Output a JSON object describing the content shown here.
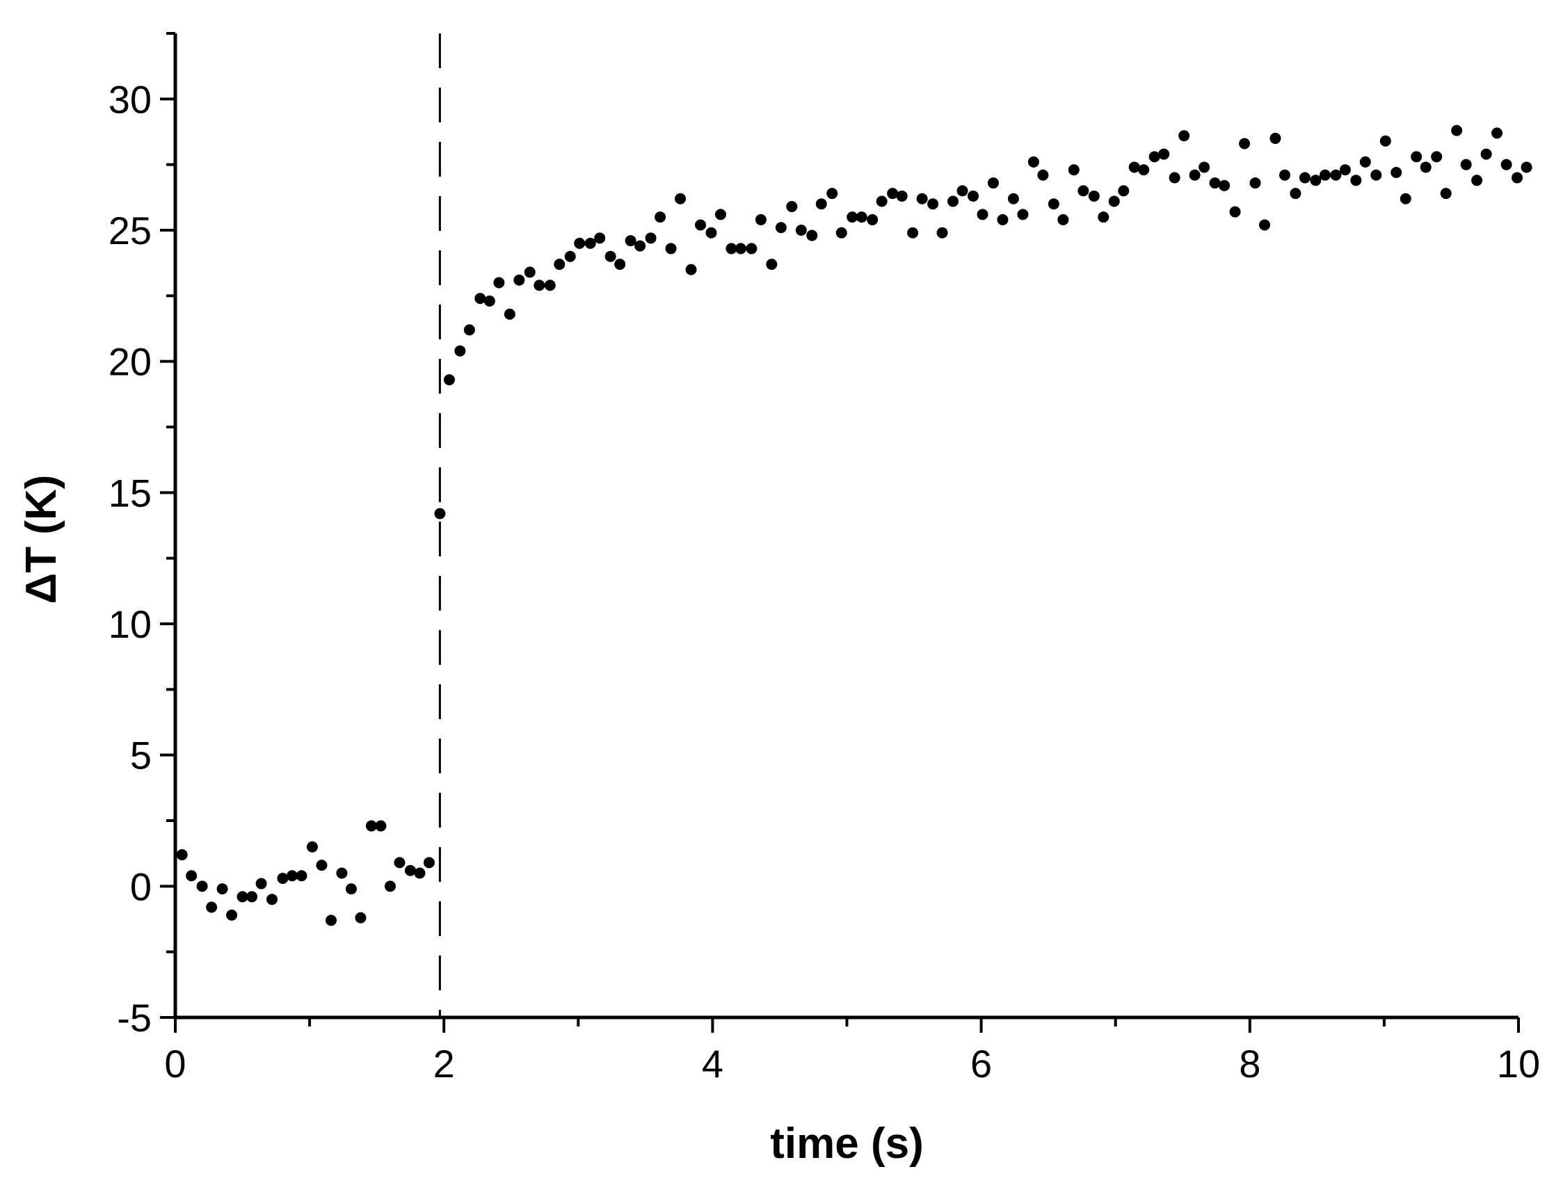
{
  "chart_data": {
    "type": "scatter",
    "xlabel": "time (s)",
    "ylabel": "ΔT (K)",
    "xlim": [
      0,
      10
    ],
    "ylim": [
      -5,
      32.5
    ],
    "xticks": [
      0,
      2,
      4,
      6,
      8,
      10
    ],
    "yticks": [
      -5,
      0,
      5,
      10,
      15,
      20,
      25,
      30
    ],
    "x_minor_step": 1,
    "y_minor_step": 2.5,
    "grid": false,
    "legend": "none",
    "vertical_marker": {
      "x": 1.97,
      "style": "dashed"
    },
    "series": [
      {
        "marker_color": "#000000",
        "points": [
          [
            0.05,
            1.2
          ],
          [
            0.12,
            0.4
          ],
          [
            0.2,
            0.0
          ],
          [
            0.27,
            -0.8
          ],
          [
            0.35,
            -0.1
          ],
          [
            0.42,
            -1.1
          ],
          [
            0.5,
            -0.4
          ],
          [
            0.57,
            -0.4
          ],
          [
            0.64,
            0.1
          ],
          [
            0.72,
            -0.5
          ],
          [
            0.8,
            0.3
          ],
          [
            0.87,
            0.4
          ],
          [
            0.94,
            0.4
          ],
          [
            1.02,
            1.5
          ],
          [
            1.09,
            0.8
          ],
          [
            1.16,
            -1.3
          ],
          [
            1.24,
            0.5
          ],
          [
            1.31,
            -0.1
          ],
          [
            1.38,
            -1.2
          ],
          [
            1.46,
            2.3
          ],
          [
            1.53,
            2.3
          ],
          [
            1.6,
            0.0
          ],
          [
            1.67,
            0.9
          ],
          [
            1.75,
            0.6
          ],
          [
            1.82,
            0.5
          ],
          [
            1.89,
            0.9
          ],
          [
            1.97,
            14.2
          ],
          [
            2.04,
            19.3
          ],
          [
            2.12,
            20.4
          ],
          [
            2.19,
            21.2
          ],
          [
            2.27,
            22.4
          ],
          [
            2.34,
            22.3
          ],
          [
            2.41,
            23.0
          ],
          [
            2.49,
            21.8
          ],
          [
            2.56,
            23.1
          ],
          [
            2.64,
            23.4
          ],
          [
            2.71,
            22.9
          ],
          [
            2.79,
            22.9
          ],
          [
            2.86,
            23.7
          ],
          [
            2.94,
            24.0
          ],
          [
            3.01,
            24.5
          ],
          [
            3.09,
            24.5
          ],
          [
            3.16,
            24.7
          ],
          [
            3.24,
            24.0
          ],
          [
            3.31,
            23.7
          ],
          [
            3.39,
            24.6
          ],
          [
            3.46,
            24.4
          ],
          [
            3.54,
            24.7
          ],
          [
            3.61,
            25.5
          ],
          [
            3.69,
            24.3
          ],
          [
            3.76,
            26.2
          ],
          [
            3.84,
            23.5
          ],
          [
            3.91,
            25.2
          ],
          [
            3.99,
            24.9
          ],
          [
            4.06,
            25.6
          ],
          [
            4.14,
            24.3
          ],
          [
            4.21,
            24.3
          ],
          [
            4.29,
            24.3
          ],
          [
            4.36,
            25.4
          ],
          [
            4.44,
            23.7
          ],
          [
            4.51,
            25.1
          ],
          [
            4.59,
            25.9
          ],
          [
            4.66,
            25.0
          ],
          [
            4.74,
            24.8
          ],
          [
            4.81,
            26.0
          ],
          [
            4.89,
            26.4
          ],
          [
            4.96,
            24.9
          ],
          [
            5.04,
            25.5
          ],
          [
            5.11,
            25.5
          ],
          [
            5.19,
            25.4
          ],
          [
            5.26,
            26.1
          ],
          [
            5.34,
            26.4
          ],
          [
            5.41,
            26.3
          ],
          [
            5.49,
            24.9
          ],
          [
            5.56,
            26.2
          ],
          [
            5.64,
            26.0
          ],
          [
            5.71,
            24.9
          ],
          [
            5.79,
            26.1
          ],
          [
            5.86,
            26.5
          ],
          [
            5.94,
            26.3
          ],
          [
            6.01,
            25.6
          ],
          [
            6.09,
            26.8
          ],
          [
            6.16,
            25.4
          ],
          [
            6.24,
            26.2
          ],
          [
            6.31,
            25.6
          ],
          [
            6.39,
            27.6
          ],
          [
            6.46,
            27.1
          ],
          [
            6.54,
            26.0
          ],
          [
            6.61,
            25.4
          ],
          [
            6.69,
            27.3
          ],
          [
            6.76,
            26.5
          ],
          [
            6.84,
            26.3
          ],
          [
            6.91,
            25.5
          ],
          [
            6.99,
            26.1
          ],
          [
            7.06,
            26.5
          ],
          [
            7.14,
            27.4
          ],
          [
            7.21,
            27.3
          ],
          [
            7.29,
            27.8
          ],
          [
            7.36,
            27.9
          ],
          [
            7.44,
            27.0
          ],
          [
            7.51,
            28.6
          ],
          [
            7.59,
            27.1
          ],
          [
            7.66,
            27.4
          ],
          [
            7.74,
            26.8
          ],
          [
            7.81,
            26.7
          ],
          [
            7.89,
            25.7
          ],
          [
            7.96,
            28.3
          ],
          [
            8.04,
            26.8
          ],
          [
            8.11,
            25.2
          ],
          [
            8.19,
            28.5
          ],
          [
            8.26,
            27.1
          ],
          [
            8.34,
            26.4
          ],
          [
            8.41,
            27.0
          ],
          [
            8.49,
            26.9
          ],
          [
            8.56,
            27.1
          ],
          [
            8.64,
            27.1
          ],
          [
            8.71,
            27.3
          ],
          [
            8.79,
            26.9
          ],
          [
            8.86,
            27.6
          ],
          [
            8.94,
            27.1
          ],
          [
            9.01,
            28.4
          ],
          [
            9.09,
            27.2
          ],
          [
            9.16,
            26.2
          ],
          [
            9.24,
            27.8
          ],
          [
            9.31,
            27.4
          ],
          [
            9.39,
            27.8
          ],
          [
            9.46,
            26.4
          ],
          [
            9.54,
            28.8
          ],
          [
            9.61,
            27.5
          ],
          [
            9.69,
            26.9
          ],
          [
            9.76,
            27.9
          ],
          [
            9.84,
            28.7
          ],
          [
            9.91,
            27.5
          ],
          [
            9.99,
            27.0
          ],
          [
            10.06,
            27.4
          ]
        ]
      }
    ]
  }
}
